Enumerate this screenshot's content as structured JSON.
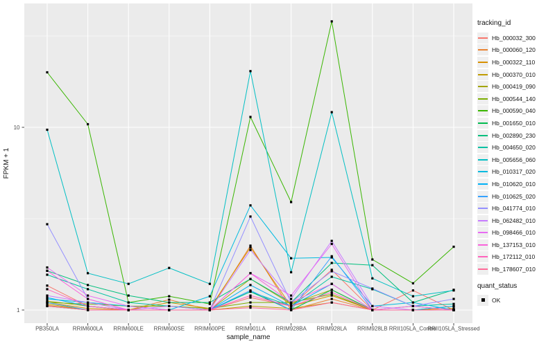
{
  "figure": {
    "background": "#FFFFFF",
    "panel_background": "#EBEBEB",
    "grid_color": "#FFFFFF",
    "tick_text_color": "#4D4D4D",
    "title_text_color": "#141414",
    "point_color": "#000000"
  },
  "legend": {
    "title": "tracking_id"
  },
  "legend2": {
    "title": "quant_status",
    "ok_label": "OK",
    "ok_swatch": "black-square"
  },
  "chart_data": {
    "type": "line",
    "title": "",
    "xlabel": "sample_name",
    "ylabel": "FPKM + 1",
    "y_scale": "log10",
    "y_breaks": [
      1,
      10
    ],
    "y_tick_labels": [
      "1",
      "10"
    ],
    "y_minor_breaks": [
      3.1623,
      31.623
    ],
    "ylim": [
      0.85,
      47
    ],
    "grid": true,
    "legend_position": "right",
    "point_shape": "filled-square",
    "point_status": "OK",
    "categories": [
      "PB350LA",
      "RRIM600LA",
      "RRIM600LE",
      "RRIM600SE",
      "RRIM600PE",
      "RRIM901LA",
      "RRIM928BA",
      "RRIM928LA",
      "RRIM928LB",
      "RRII105LA_Control",
      "RRII105LA_Stressed"
    ],
    "series": [
      {
        "name": "Hb_000032_300",
        "color": "#F8766D",
        "values": [
          1.36,
          1.05,
          1.0,
          1.0,
          1.0,
          1.17,
          1.05,
          1.66,
          1.0,
          1.28,
          1.0
        ]
      },
      {
        "name": "Hb_000060_120",
        "color": "#EA8331",
        "values": [
          1.06,
          1.0,
          1.0,
          1.14,
          1.0,
          2.25,
          1.0,
          1.15,
          1.0,
          1.0,
          1.0
        ]
      },
      {
        "name": "Hb_000322_110",
        "color": "#D89000",
        "values": [
          1.1,
          1.02,
          1.0,
          1.1,
          1.02,
          2.2,
          1.05,
          1.2,
          1.0,
          1.0,
          1.02
        ]
      },
      {
        "name": "Hb_000370_010",
        "color": "#C09B00",
        "values": [
          1.08,
          1.0,
          1.0,
          1.0,
          1.0,
          1.05,
          1.02,
          1.1,
          1.0,
          1.05,
          1.0
        ]
      },
      {
        "name": "Hb_000419_090",
        "color": "#A3A500",
        "values": [
          1.12,
          1.05,
          1.0,
          1.0,
          1.0,
          1.48,
          1.08,
          1.29,
          1.0,
          1.0,
          1.05
        ]
      },
      {
        "name": "Hb_000544_140",
        "color": "#7CAE00",
        "values": [
          1.1,
          1.08,
          1.05,
          1.05,
          1.02,
          1.1,
          1.1,
          1.22,
          1.0,
          1.0,
          1.0
        ]
      },
      {
        "name": "Hb_000590_040",
        "color": "#39B600",
        "values": [
          20.0,
          10.4,
          1.1,
          1.19,
          1.08,
          11.4,
          3.9,
          38.0,
          1.89,
          1.4,
          2.22
        ]
      },
      {
        "name": "Hb_001650_010",
        "color": "#00BB4E",
        "values": [
          1.05,
          1.0,
          1.0,
          1.0,
          1.0,
          1.26,
          1.0,
          1.29,
          1.0,
          1.0,
          1.0
        ]
      },
      {
        "name": "Hb_002890_230",
        "color": "#00BF7D",
        "values": [
          1.64,
          1.37,
          1.2,
          1.1,
          1.1,
          1.48,
          1.1,
          1.81,
          1.76,
          1.1,
          1.29
        ]
      },
      {
        "name": "Hb_004650_020",
        "color": "#00C1A3",
        "values": [
          1.56,
          1.3,
          1.1,
          1.05,
          1.0,
          1.26,
          1.05,
          1.52,
          1.3,
          1.05,
          1.08
        ]
      },
      {
        "name": "Hb_005656_060",
        "color": "#00BFC4",
        "values": [
          9.7,
          1.59,
          1.39,
          1.7,
          1.39,
          20.3,
          1.61,
          12.1,
          1.49,
          1.19,
          1.28
        ]
      },
      {
        "name": "Hb_010317_020",
        "color": "#00BAE0",
        "values": [
          1.15,
          1.1,
          1.05,
          1.0,
          1.19,
          3.74,
          1.92,
          1.94,
          1.05,
          1.1,
          1.0
        ]
      },
      {
        "name": "Hb_010620_010",
        "color": "#00B0F6",
        "values": [
          1.17,
          1.05,
          1.0,
          1.0,
          1.0,
          1.37,
          1.05,
          1.39,
          1.0,
          1.0,
          1.05
        ]
      },
      {
        "name": "Hb_010625_020",
        "color": "#35A2FF",
        "values": [
          1.1,
          1.0,
          1.0,
          1.0,
          1.0,
          1.28,
          1.0,
          1.97,
          1.0,
          1.0,
          1.0
        ]
      },
      {
        "name": "Hb_041774_010",
        "color": "#9590FF",
        "values": [
          2.95,
          1.15,
          1.0,
          1.0,
          1.0,
          3.25,
          1.1,
          1.63,
          1.31,
          1.05,
          1.15
        ]
      },
      {
        "name": "Hb_062482_010",
        "color": "#C77CFF",
        "values": [
          1.2,
          1.1,
          1.0,
          1.05,
          1.0,
          2.13,
          1.15,
          2.39,
          1.05,
          1.0,
          1.0
        ]
      },
      {
        "name": "Hb_098466_010",
        "color": "#E76BF3",
        "values": [
          1.71,
          1.2,
          1.05,
          1.0,
          1.0,
          1.59,
          1.2,
          2.3,
          1.0,
          1.05,
          1.0
        ]
      },
      {
        "name": "Hb_137153_010",
        "color": "#FA62DB",
        "values": [
          1.64,
          1.15,
          1.0,
          1.0,
          1.0,
          1.59,
          1.1,
          1.39,
          1.0,
          1.0,
          1.0
        ]
      },
      {
        "name": "Hb_172112_010",
        "color": "#FF62BC",
        "values": [
          1.3,
          1.05,
          1.0,
          1.0,
          1.0,
          1.2,
          1.05,
          1.25,
          1.0,
          1.0,
          1.0
        ]
      },
      {
        "name": "Hb_178607_010",
        "color": "#FF6A98",
        "values": [
          1.05,
          1.0,
          1.0,
          1.0,
          1.0,
          1.03,
          1.0,
          1.1,
          1.0,
          1.0,
          1.0
        ]
      }
    ]
  }
}
